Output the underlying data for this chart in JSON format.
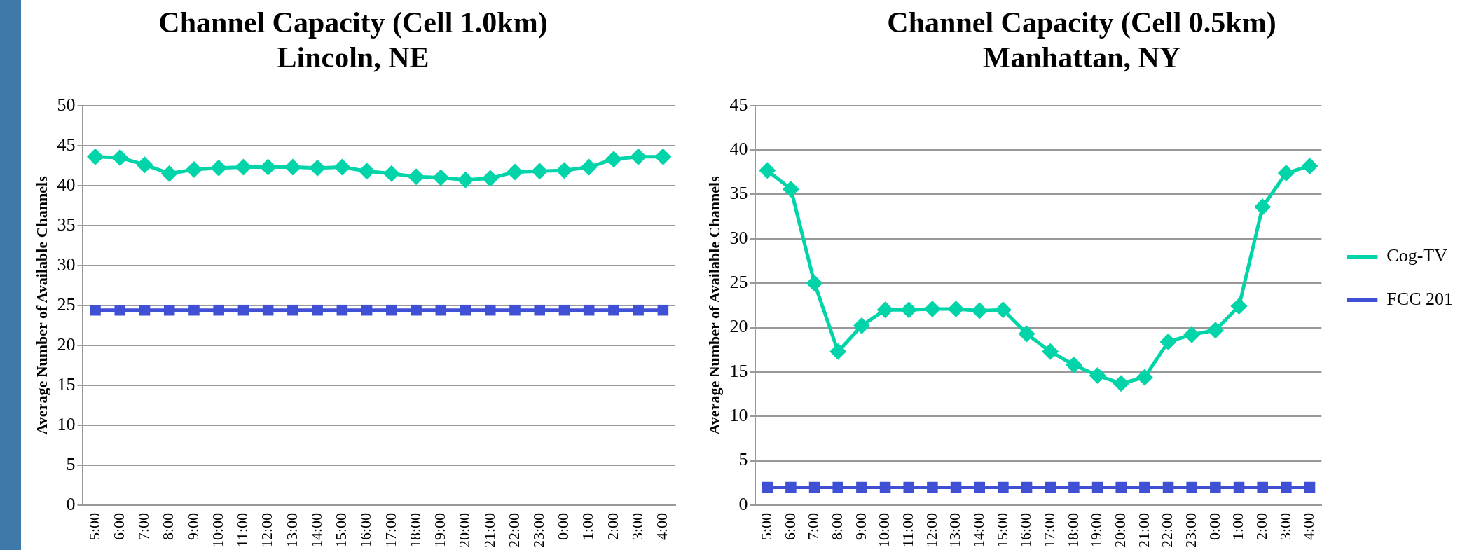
{
  "chart_data": [
    {
      "type": "line",
      "title": "Channel Capacity (Cell 1.0km)",
      "subtitle": "Lincoln, NE",
      "ylabel": "Average Number of Available Channels",
      "categories": [
        "5:00",
        "6:00",
        "7:00",
        "8:00",
        "9:00",
        "10:00",
        "11:00",
        "12:00",
        "13:00",
        "14:00",
        "15:00",
        "16:00",
        "17:00",
        "18:00",
        "19:00",
        "20:00",
        "21:00",
        "22:00",
        "23:00",
        "0:00",
        "1:00",
        "2:00",
        "3:00",
        "4:00"
      ],
      "series": [
        {
          "color": "#00d4a8",
          "marker": "diamond",
          "values": [
            43.6,
            43.5,
            42.6,
            41.5,
            42.0,
            42.2,
            42.3,
            42.3,
            42.3,
            42.2,
            42.3,
            41.8,
            41.5,
            41.1,
            41.0,
            40.7,
            40.9,
            41.7,
            41.8,
            41.9,
            42.3,
            43.3,
            43.6,
            43.6
          ]
        },
        {
          "color": "#4050d4",
          "marker": "square",
          "values": [
            24.4,
            24.4,
            24.4,
            24.4,
            24.4,
            24.4,
            24.4,
            24.4,
            24.4,
            24.4,
            24.4,
            24.4,
            24.4,
            24.4,
            24.4,
            24.4,
            24.4,
            24.4,
            24.4,
            24.4,
            24.4,
            24.4,
            24.4,
            24.4
          ]
        }
      ],
      "ylim": [
        0,
        50
      ],
      "yticks": [
        0,
        5,
        10,
        15,
        20,
        25,
        30,
        35,
        40,
        45,
        50
      ],
      "grid": "y",
      "legend": false
    },
    {
      "type": "line",
      "title": "Channel Capacity (Cell 0.5km)",
      "subtitle": "Manhattan, NY",
      "ylabel": "Average Number of Available Channels",
      "categories": [
        "5:00",
        "6:00",
        "7:00",
        "8:00",
        "9:00",
        "10:00",
        "11:00",
        "12:00",
        "13:00",
        "14:00",
        "15:00",
        "16:00",
        "17:00",
        "18:00",
        "19:00",
        "20:00",
        "21:00",
        "22:00",
        "23:00",
        "0:00",
        "1:00",
        "2:00",
        "3:00",
        "4:00"
      ],
      "series": [
        {
          "name": "Cog-TV",
          "color": "#00d4a8",
          "marker": "diamond",
          "values": [
            37.7,
            35.6,
            25.0,
            17.3,
            20.2,
            22.0,
            22.0,
            22.1,
            22.1,
            21.9,
            22.0,
            19.3,
            17.3,
            15.8,
            14.6,
            13.7,
            14.4,
            18.4,
            19.2,
            19.7,
            22.4,
            33.6,
            37.4,
            38.2
          ]
        },
        {
          "name": "FCC 201",
          "color": "#4050d4",
          "marker": "square",
          "values": [
            2.0,
            2.0,
            2.0,
            2.0,
            2.0,
            2.0,
            2.0,
            2.0,
            2.0,
            2.0,
            2.0,
            2.0,
            2.0,
            2.0,
            2.0,
            2.0,
            2.0,
            2.0,
            2.0,
            2.0,
            2.0,
            2.0,
            2.0,
            2.0
          ]
        }
      ],
      "ylim": [
        0,
        45
      ],
      "yticks": [
        0,
        5,
        10,
        15,
        20,
        25,
        30,
        35,
        40,
        45
      ],
      "grid": "y",
      "legend": "right"
    }
  ]
}
